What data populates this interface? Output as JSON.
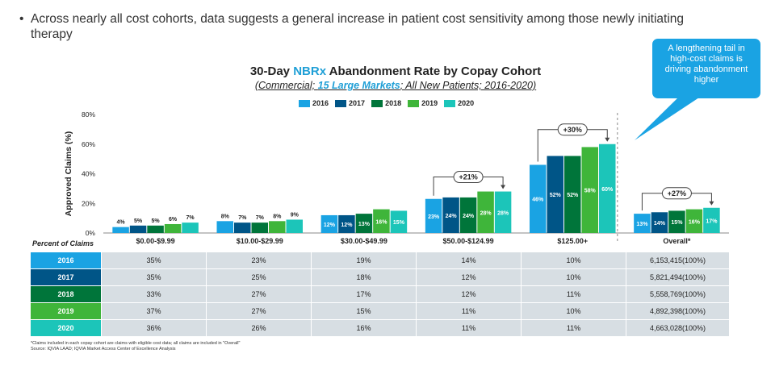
{
  "bullet": "Across nearly all cost cohorts, data suggests a general increase in patient cost sensitivity among those newly initiating therapy",
  "title": {
    "pre": "30-Day ",
    "hl": "NBRx",
    "post": " Abandonment Rate by Copay Cohort"
  },
  "subtitle": {
    "pre": "(Commercial; ",
    "hl": "15 Large Markets",
    "post": "; All New Patients; 2016-2020)"
  },
  "callout": "A lengthening tail in high-cost claims is driving abandonment higher",
  "chart_data": {
    "type": "bar",
    "title": "30-Day NBRx Abandonment Rate by Copay Cohort",
    "ylabel": "Approved Claims (%)",
    "ylim": [
      0,
      80
    ],
    "yticks": [
      "0%",
      "20%",
      "40%",
      "60%",
      "80%"
    ],
    "categories": [
      "$0.00-$9.99",
      "$10.00-$29.99",
      "$30.00-$49.99",
      "$50.00-$124.99",
      "$125.00+",
      "Overall*"
    ],
    "series": [
      {
        "name": "2016",
        "color": "#1aa3e3",
        "values": [
          4,
          8,
          12,
          23,
          46,
          13
        ]
      },
      {
        "name": "2017",
        "color": "#005587",
        "values": [
          5,
          7,
          12,
          24,
          52,
          14
        ]
      },
      {
        "name": "2018",
        "color": "#00753a",
        "values": [
          5,
          7,
          13,
          24,
          52,
          15
        ]
      },
      {
        "name": "2019",
        "color": "#3fb53a",
        "values": [
          6,
          8,
          16,
          28,
          58,
          16
        ]
      },
      {
        "name": "2020",
        "color": "#1cc5b9",
        "values": [
          7,
          9,
          15,
          28,
          60,
          17
        ]
      }
    ],
    "annotations": [
      {
        "category": 3,
        "label": "+21%"
      },
      {
        "category": 4,
        "label": "+30%"
      },
      {
        "category": 5,
        "label": "+27%"
      }
    ],
    "legend_position": "top"
  },
  "table": {
    "header": "Percent of Claims",
    "rows": [
      {
        "year": "2016",
        "color": "#1aa3e3",
        "values": [
          "35%",
          "23%",
          "19%",
          "14%",
          "10%",
          "6,153,415(100%)"
        ]
      },
      {
        "year": "2017",
        "color": "#005587",
        "values": [
          "35%",
          "25%",
          "18%",
          "12%",
          "10%",
          "5,821,494(100%)"
        ]
      },
      {
        "year": "2018",
        "color": "#00753a",
        "values": [
          "33%",
          "27%",
          "17%",
          "12%",
          "11%",
          "5,558,769(100%)"
        ]
      },
      {
        "year": "2019",
        "color": "#3fb53a",
        "values": [
          "37%",
          "27%",
          "15%",
          "11%",
          "10%",
          "4,892,398(100%)"
        ]
      },
      {
        "year": "2020",
        "color": "#1cc5b9",
        "values": [
          "36%",
          "26%",
          "16%",
          "11%",
          "11%",
          "4,663,028(100%)"
        ]
      }
    ]
  },
  "footnote": {
    "line1": "*Claims included in each copay cohort are claims with eligible cost data; all claims are included in \"Overall\"",
    "line2": "Source: IQVIA LAAD; IQVIA Market Access Center of Excellence Analysis"
  }
}
